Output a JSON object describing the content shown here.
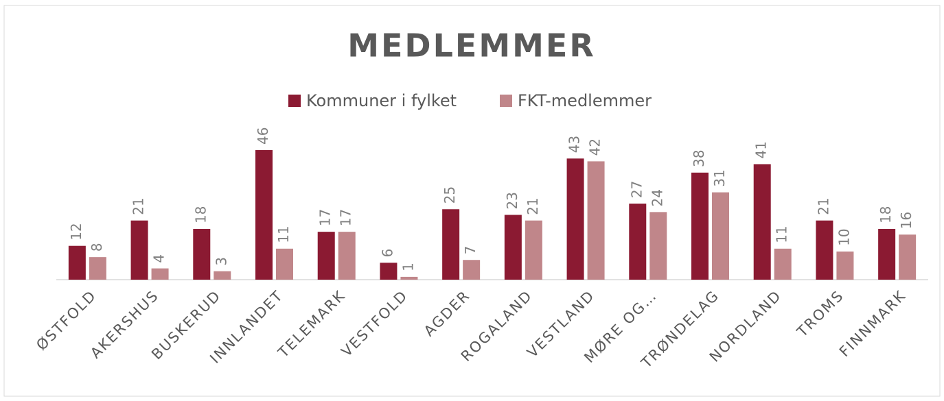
{
  "chart_data": {
    "type": "bar",
    "title": "MEDLEMMER",
    "categories": [
      "ØSTFOLD",
      "AKERSHUS",
      "BUSKERUD",
      "INNLANDET",
      "TELEMARK",
      "VESTFOLD",
      "AGDER",
      "ROGALAND",
      "VESTLAND",
      "MØRE OG…",
      "TRØNDELAG",
      "NORDLAND",
      "TROMS",
      "FINNMARK"
    ],
    "series": [
      {
        "name": "Kommuner i fylket",
        "color": "#8b1a32",
        "values": [
          12,
          21,
          18,
          46,
          17,
          6,
          25,
          23,
          43,
          27,
          38,
          41,
          21,
          18
        ]
      },
      {
        "name": "FKT-medlemmer",
        "color": "#c0868a",
        "values": [
          8,
          4,
          3,
          11,
          17,
          1,
          7,
          21,
          42,
          24,
          31,
          11,
          10,
          16
        ]
      }
    ],
    "legend": "top"
  }
}
